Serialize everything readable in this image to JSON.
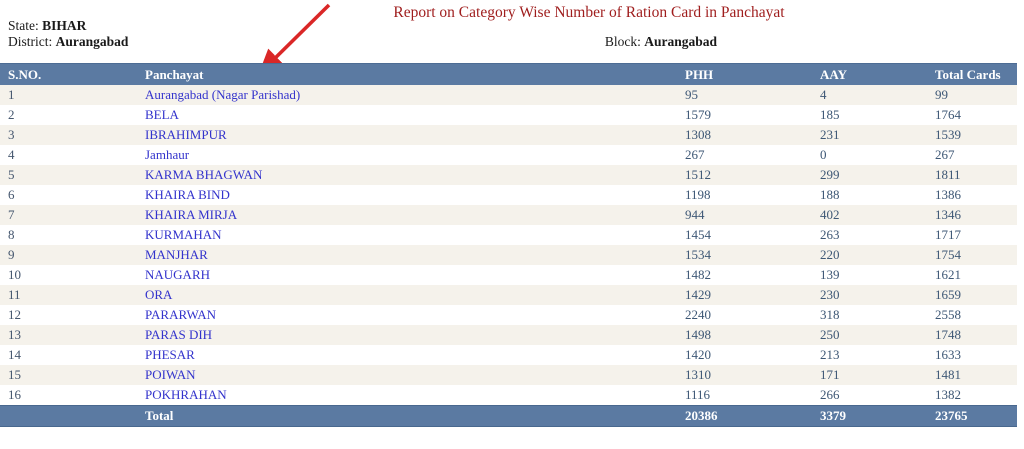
{
  "page": {
    "title": "Report on Category Wise Number of Ration Card in Panchayat",
    "state_label": "State:",
    "state_value": "BIHAR",
    "district_label": "District:",
    "district_value": "Aurangabad",
    "block_label": "Block:",
    "block_value": "Aurangabad"
  },
  "colors": {
    "header_bg": "#5b7aa2",
    "alt_row_bg": "#f5f2eb",
    "title_color": "#9f1d1d",
    "link_color": "#3333cc",
    "number_color": "#3d5775",
    "arrow_color": "#da2727"
  },
  "annotation": {
    "arrow": "red arrow pointing at Panchayat column header"
  },
  "table": {
    "columns": [
      "S.NO.",
      "Panchayat",
      "PHH",
      "AAY",
      "Total Cards"
    ],
    "rows": [
      {
        "sno": "1",
        "panchayat": "Aurangabad (Nagar Parishad)",
        "phh": "95",
        "aay": "4",
        "total": "99"
      },
      {
        "sno": "2",
        "panchayat": "BELA",
        "phh": "1579",
        "aay": "185",
        "total": "1764"
      },
      {
        "sno": "3",
        "panchayat": "IBRAHIMPUR",
        "phh": "1308",
        "aay": "231",
        "total": "1539"
      },
      {
        "sno": "4",
        "panchayat": "Jamhaur",
        "phh": "267",
        "aay": "0",
        "total": "267"
      },
      {
        "sno": "5",
        "panchayat": "KARMA BHAGWAN",
        "phh": "1512",
        "aay": "299",
        "total": "1811"
      },
      {
        "sno": "6",
        "panchayat": "KHAIRA BIND",
        "phh": "1198",
        "aay": "188",
        "total": "1386"
      },
      {
        "sno": "7",
        "panchayat": "KHAIRA MIRJA",
        "phh": "944",
        "aay": "402",
        "total": "1346"
      },
      {
        "sno": "8",
        "panchayat": "KURMAHAN",
        "phh": "1454",
        "aay": "263",
        "total": "1717"
      },
      {
        "sno": "9",
        "panchayat": "MANJHAR",
        "phh": "1534",
        "aay": "220",
        "total": "1754"
      },
      {
        "sno": "10",
        "panchayat": "NAUGARH",
        "phh": "1482",
        "aay": "139",
        "total": "1621"
      },
      {
        "sno": "11",
        "panchayat": "ORA",
        "phh": "1429",
        "aay": "230",
        "total": "1659"
      },
      {
        "sno": "12",
        "panchayat": "PARARWAN",
        "phh": "2240",
        "aay": "318",
        "total": "2558"
      },
      {
        "sno": "13",
        "panchayat": "PARAS DIH",
        "phh": "1498",
        "aay": "250",
        "total": "1748"
      },
      {
        "sno": "14",
        "panchayat": "PHESAR",
        "phh": "1420",
        "aay": "213",
        "total": "1633"
      },
      {
        "sno": "15",
        "panchayat": "POIWAN",
        "phh": "1310",
        "aay": "171",
        "total": "1481"
      },
      {
        "sno": "16",
        "panchayat": "POKHRAHAN",
        "phh": "1116",
        "aay": "266",
        "total": "1382"
      }
    ],
    "total_row": {
      "label": "Total",
      "phh": "20386",
      "aay": "3379",
      "total": "23765"
    }
  }
}
